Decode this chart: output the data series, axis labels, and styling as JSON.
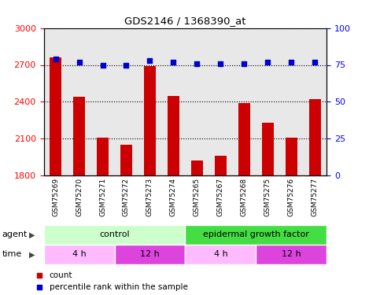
{
  "title": "GDS2146 / 1368390_at",
  "samples": [
    "GSM75269",
    "GSM75270",
    "GSM75271",
    "GSM75272",
    "GSM75273",
    "GSM75274",
    "GSM75265",
    "GSM75267",
    "GSM75268",
    "GSM75275",
    "GSM75276",
    "GSM75277"
  ],
  "counts": [
    2760,
    2440,
    2110,
    2050,
    2690,
    2450,
    1920,
    1960,
    2390,
    2230,
    2110,
    2420
  ],
  "percentile_ranks": [
    79,
    77,
    75,
    75,
    78,
    77,
    76,
    76,
    76,
    77,
    77,
    77
  ],
  "ylim_left": [
    1800,
    3000
  ],
  "ylim_right": [
    0,
    100
  ],
  "yticks_left": [
    1800,
    2100,
    2400,
    2700,
    3000
  ],
  "yticks_right": [
    0,
    25,
    50,
    75,
    100
  ],
  "bar_color": "#cc0000",
  "dot_color": "#0000cc",
  "agent_groups": [
    {
      "label": "control",
      "start": 0,
      "end": 5,
      "color": "#ccffcc"
    },
    {
      "label": "epidermal growth factor",
      "start": 6,
      "end": 11,
      "color": "#44dd44"
    }
  ],
  "time_groups": [
    {
      "label": "4 h",
      "start": 0,
      "end": 2,
      "color": "#ffbbff"
    },
    {
      "label": "12 h",
      "start": 3,
      "end": 5,
      "color": "#dd44dd"
    },
    {
      "label": "4 h",
      "start": 6,
      "end": 8,
      "color": "#ffbbff"
    },
    {
      "label": "12 h",
      "start": 9,
      "end": 11,
      "color": "#dd44dd"
    }
  ],
  "legend_items": [
    {
      "label": "count",
      "color": "#cc0000"
    },
    {
      "label": "percentile rank within the sample",
      "color": "#0000cc"
    }
  ],
  "plot_bg_color": "#e8e8e8",
  "xtick_bg_color": "#c8c8c8"
}
